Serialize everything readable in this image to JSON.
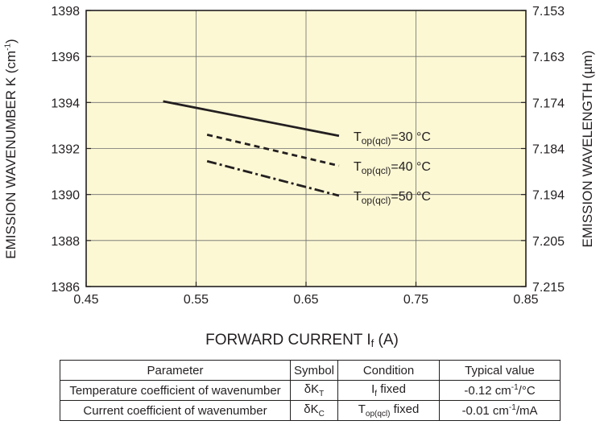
{
  "chart_data": {
    "type": "line",
    "x": [
      0.52,
      0.56,
      0.68
    ],
    "xlim": [
      0.45,
      0.85
    ],
    "ylim": [
      1386,
      1398
    ],
    "xticks": [
      "0.45",
      "0.55",
      "0.65",
      "0.75",
      "0.85"
    ],
    "yticks": [
      "1386",
      "1388",
      "1390",
      "1392",
      "1394",
      "1396",
      "1398"
    ],
    "y2ticks": [
      "7.215",
      "7.205",
      "7.194",
      "7.184",
      "7.174",
      "7.163",
      "7.153"
    ],
    "ylabel": "EMISSION WAVENUMBER K (cm",
    "ylabel_sup": "-1",
    "ylabel_tail": ")",
    "y2label": "EMISSION WAVELENGTH (µm)",
    "xlabel": "FORWARD CURRENT I",
    "xlabel_sub": "f",
    "xlabel_tail": " (A)",
    "grid": true,
    "background_color": "#fcf8d4",
    "series": [
      {
        "name": "T_op(qcl)=30 °C",
        "label_main": "T",
        "label_sub": "op(qcl)",
        "label_tail": "=30 °C",
        "style": "solid",
        "x": [
          0.52,
          0.68
        ],
        "values": [
          1394.05,
          1392.55
        ]
      },
      {
        "name": "T_op(qcl)=40 °C",
        "label_main": "T",
        "label_sub": "op(qcl)",
        "label_tail": "=40 °C",
        "style": "dashed",
        "x": [
          0.56,
          0.68
        ],
        "values": [
          1392.6,
          1391.25
        ]
      },
      {
        "name": "T_op(qcl)=50 °C",
        "label_main": "T",
        "label_sub": "op(qcl)",
        "label_tail": "=50 °C",
        "style": "dashdot",
        "x": [
          0.56,
          0.68
        ],
        "values": [
          1391.45,
          1389.95
        ]
      }
    ]
  },
  "table": {
    "headers": [
      "Parameter",
      "Symbol",
      "Condition",
      "Typical value"
    ],
    "rows": [
      {
        "parameter": "Temperature coefficient of wavenumber",
        "symbol_main": "δK",
        "symbol_sub": "T",
        "condition_main": "I",
        "condition_sub": "f",
        "condition_tail": " fixed",
        "value_main": "-0.12 cm",
        "value_sup": "-1",
        "value_tail": "/°C"
      },
      {
        "parameter": "Current coefficient of wavenumber",
        "symbol_main": "δK",
        "symbol_sub": "C",
        "condition_main": "T",
        "condition_sub": "op(qcl)",
        "condition_tail": " fixed",
        "value_main": "-0.01 cm",
        "value_sup": "-1",
        "value_tail": "/mA"
      }
    ]
  }
}
